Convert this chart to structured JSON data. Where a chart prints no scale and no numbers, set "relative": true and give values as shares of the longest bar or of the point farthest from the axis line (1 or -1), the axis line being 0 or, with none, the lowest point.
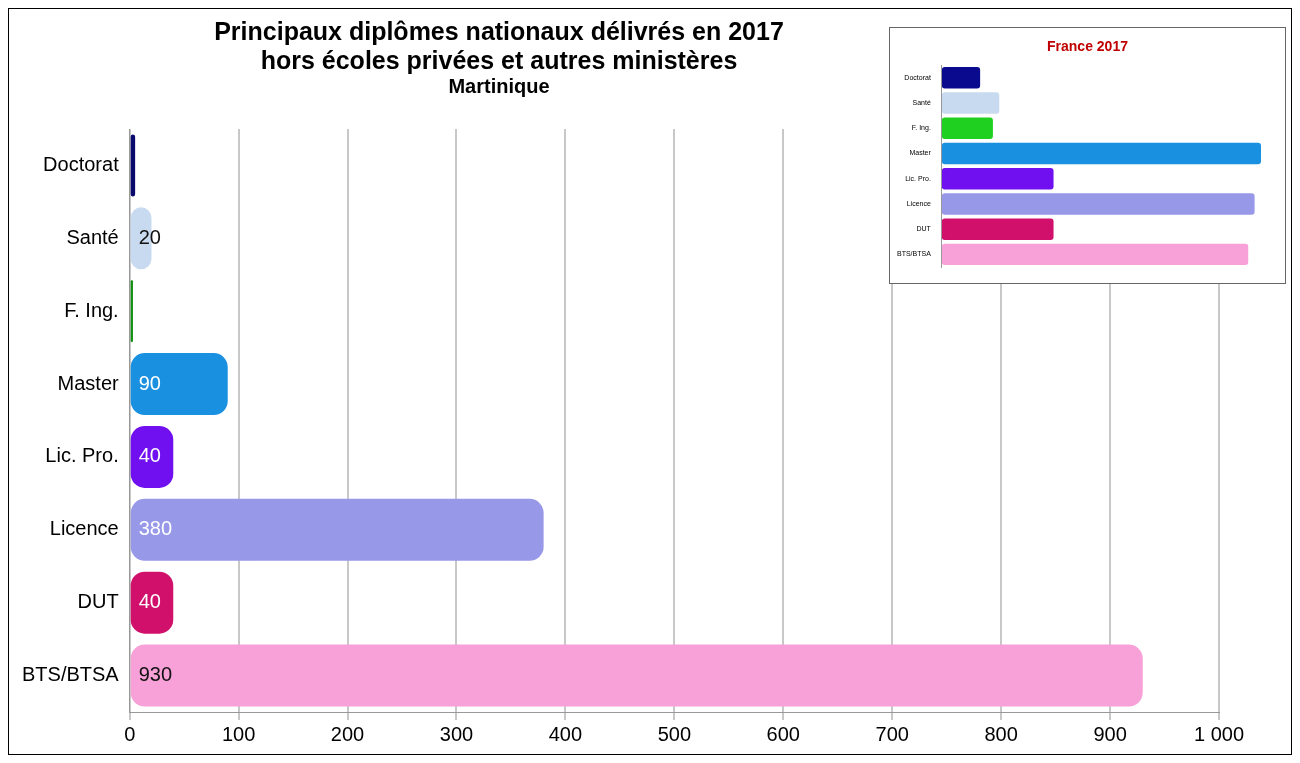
{
  "chart_data": [
    {
      "type": "bar",
      "orientation": "horizontal",
      "title": "Principaux diplômes nationaux délivrés en 2017\nhors écoles privées et autres ministères",
      "subtitle": "Martinique",
      "categories": [
        "Doctorat",
        "Santé",
        "F. Ing.",
        "Master",
        "Lic. Pro.",
        "Licence",
        "DUT",
        "BTS/BTSA"
      ],
      "values": [
        5,
        20,
        3,
        90,
        40,
        380,
        40,
        930
      ],
      "value_labels": [
        null,
        "20",
        null,
        "90",
        "40",
        "380",
        "40",
        "930"
      ],
      "colors": [
        "#0a0a6e",
        "#c8daf0",
        "#109010",
        "#1a90e0",
        "#7010f0",
        "#9898e8",
        "#d0106a",
        "#f8a0d8"
      ],
      "xlim": [
        0,
        1000
      ],
      "xticks": [
        0,
        100,
        200,
        300,
        400,
        500,
        600,
        700,
        800,
        900,
        {
          "value": 1000,
          "label": "1 000"
        }
      ],
      "grid": "x"
    },
    {
      "type": "bar",
      "orientation": "horizontal",
      "title": "France 2017",
      "relative": true,
      "categories": [
        "Doctorat",
        "Santé",
        "F. Ing.",
        "Master",
        "Lic. Pro.",
        "Licence",
        "DUT",
        "BTS/BTSA"
      ],
      "values": [
        0.12,
        0.18,
        0.16,
        1,
        0.35,
        0.98,
        0.35,
        0.96
      ],
      "colors": [
        "#0a0a8e",
        "#c8daf0",
        "#20d020",
        "#1a90e0",
        "#7010f0",
        "#9898e8",
        "#d0106a",
        "#f8a0d8"
      ]
    }
  ]
}
